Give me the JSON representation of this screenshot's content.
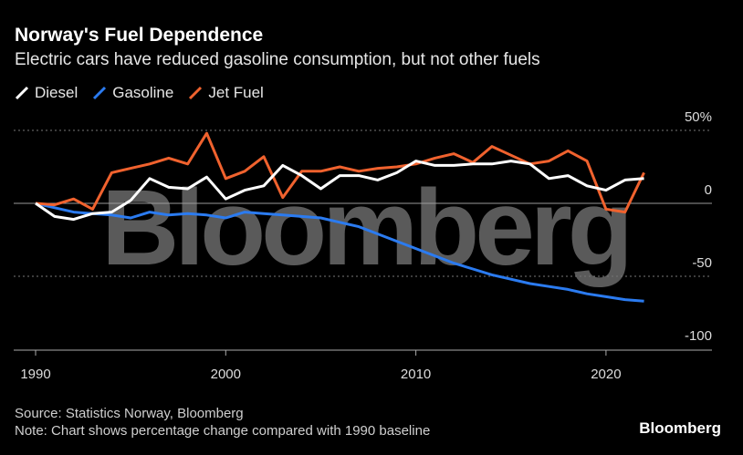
{
  "title": "Norway's Fuel Dependence",
  "subtitle": "Electric cars have reduced gasoline consumption, but not other fuels",
  "footer": {
    "source": "Source: Statistics Norway, Bloomberg",
    "note": "Note: Chart shows percentage change compared with 1990 baseline"
  },
  "logo": "Bloomberg",
  "watermark": "Bloomberg",
  "chart_data": {
    "type": "line",
    "xlabel": "",
    "ylabel": "",
    "xlim": [
      1989,
      2025
    ],
    "ylim": [
      -100,
      50
    ],
    "x_ticks": [
      "1990",
      "2000",
      "2010",
      "2020"
    ],
    "y_ticks": [
      "50%",
      "0",
      "-50",
      "-100"
    ],
    "grid": "horizontal dotted at 50 and -50, solid at 0",
    "legend": "top-left",
    "x": [
      1990,
      1991,
      1992,
      1993,
      1994,
      1995,
      1996,
      1997,
      1998,
      1999,
      2000,
      2001,
      2002,
      2003,
      2004,
      2005,
      2006,
      2007,
      2008,
      2009,
      2010,
      2011,
      2012,
      2013,
      2014,
      2015,
      2016,
      2017,
      2018,
      2019,
      2020,
      2021,
      2022
    ],
    "series": [
      {
        "name": "Diesel",
        "color": "#ffffff",
        "values": [
          0,
          -9,
          -11,
          -7,
          -6,
          2,
          17,
          11,
          10,
          18,
          3,
          9,
          12,
          26,
          19,
          10,
          19,
          19,
          16,
          21,
          29,
          26,
          26,
          27,
          27,
          29,
          27,
          17,
          19,
          12,
          9,
          16,
          17
        ]
      },
      {
        "name": "Gasoline",
        "color": "#2b7bf0",
        "values": [
          0,
          -3,
          -6,
          -7,
          -8,
          -10,
          -6,
          -8,
          -7,
          -8,
          -10,
          -6,
          -7,
          -8,
          -9,
          -10,
          -13,
          -16,
          -21,
          -26,
          -31,
          -36,
          -41,
          -45,
          -49,
          -52,
          -55,
          -57,
          -59,
          -62,
          -64,
          -66,
          -67
        ]
      },
      {
        "name": "Jet Fuel",
        "color": "#f0622e",
        "values": [
          0,
          -1,
          3,
          -4,
          21,
          24,
          27,
          31,
          27,
          48,
          17,
          22,
          32,
          4,
          22,
          22,
          25,
          22,
          24,
          25,
          27,
          31,
          34,
          28,
          39,
          33,
          27,
          29,
          36,
          29,
          -4,
          -6,
          21
        ]
      }
    ]
  }
}
